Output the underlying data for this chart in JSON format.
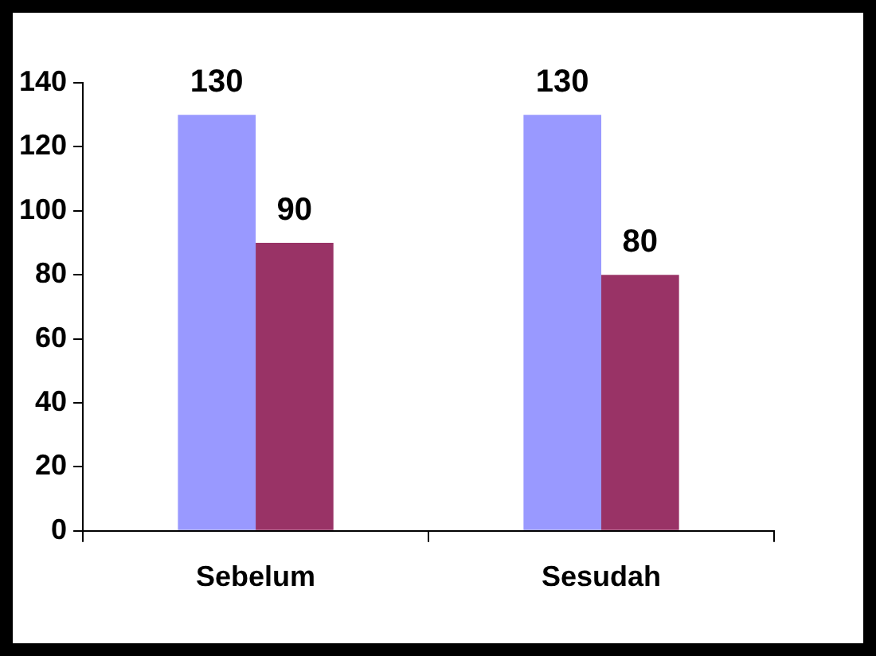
{
  "chart_data": {
    "type": "bar",
    "categories": [
      "Sebelum",
      "Sesudah"
    ],
    "series": [
      {
        "color": "#9999ff",
        "values": [
          130,
          130
        ]
      },
      {
        "color": "#993366",
        "values": [
          90,
          80
        ]
      }
    ],
    "ylim": [
      0,
      140
    ],
    "yticks": [
      0,
      20,
      40,
      60,
      80,
      100,
      120,
      140
    ],
    "grid": false,
    "legend": false,
    "data_labels": true
  }
}
